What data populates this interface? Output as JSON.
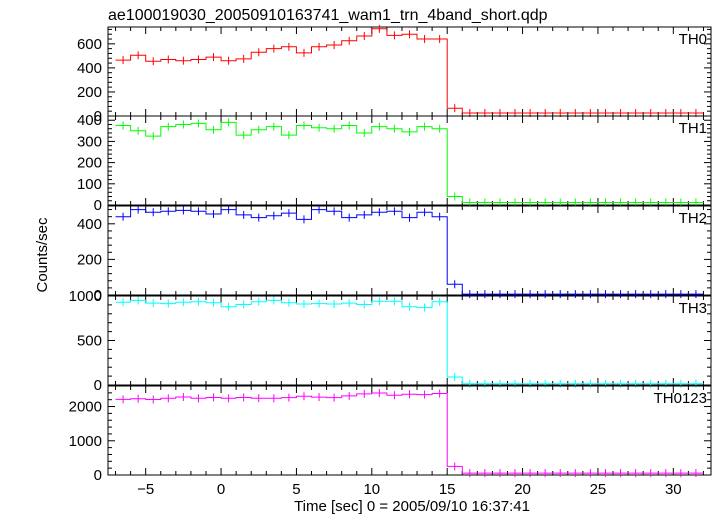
{
  "chart_data": {
    "type": "line",
    "title": "ae100019030_20050910163741_wam1_trn_4band_short.qdp",
    "xlabel": "Time [sec] 0 = 2005/09/10 16:37:41",
    "ylabel": "Counts/sec",
    "xlim": [
      -7.5,
      32.5
    ],
    "xticks": [
      -5,
      0,
      5,
      10,
      15,
      20,
      25,
      30
    ],
    "bin_edges": [
      -7,
      -6,
      -5,
      -4,
      -3,
      -2,
      -1,
      0,
      1,
      2,
      3,
      4,
      5,
      6,
      7,
      8,
      9,
      10,
      11,
      12,
      13,
      14,
      15,
      16,
      17,
      18,
      19,
      20,
      21,
      22,
      23,
      24,
      25,
      26,
      27,
      28,
      29,
      30,
      31,
      32
    ],
    "series": [
      {
        "name": "TH0",
        "color": "#ff0000",
        "ylim": [
          0,
          740
        ],
        "yticks": [
          0,
          200,
          400,
          600
        ],
        "values": [
          465,
          505,
          455,
          470,
          460,
          470,
          490,
          460,
          475,
          530,
          560,
          575,
          525,
          575,
          590,
          625,
          665,
          725,
          670,
          680,
          640,
          640,
          65,
          25,
          25,
          25,
          25,
          25,
          25,
          25,
          25,
          25,
          25,
          25,
          25,
          25,
          25,
          25,
          25
        ]
      },
      {
        "name": "TH1",
        "color": "#00ff00",
        "ylim": [
          0,
          420
        ],
        "yticks": [
          0,
          100,
          200,
          300,
          400
        ],
        "values": [
          375,
          350,
          325,
          370,
          380,
          385,
          355,
          390,
          330,
          355,
          370,
          330,
          375,
          365,
          360,
          375,
          340,
          370,
          360,
          345,
          370,
          360,
          40,
          12,
          12,
          12,
          12,
          12,
          12,
          12,
          12,
          12,
          12,
          12,
          12,
          12,
          12,
          12,
          12
        ]
      },
      {
        "name": "TH2",
        "color": "#0000ff",
        "ylim": [
          0,
          500
        ],
        "yticks": [
          0,
          200,
          400
        ],
        "values": [
          440,
          480,
          465,
          470,
          475,
          470,
          455,
          480,
          450,
          435,
          445,
          460,
          425,
          480,
          470,
          435,
          450,
          465,
          470,
          435,
          465,
          440,
          60,
          5,
          5,
          5,
          5,
          5,
          5,
          5,
          5,
          5,
          5,
          5,
          5,
          5,
          5,
          5,
          5
        ]
      },
      {
        "name": "TH3",
        "color": "#00ffff",
        "ylim": [
          0,
          1000
        ],
        "yticks": [
          0,
          500,
          1000
        ],
        "values": [
          930,
          950,
          920,
          915,
          930,
          935,
          925,
          880,
          905,
          935,
          950,
          925,
          910,
          915,
          910,
          920,
          905,
          940,
          940,
          880,
          870,
          935,
          90,
          15,
          15,
          15,
          15,
          15,
          15,
          15,
          15,
          15,
          15,
          15,
          15,
          15,
          15,
          15,
          15
        ]
      },
      {
        "name": "TH0123",
        "color": "#ff00ff",
        "ylim": [
          0,
          2600
        ],
        "yticks": [
          0,
          1000,
          2000
        ],
        "values": [
          2210,
          2230,
          2205,
          2240,
          2280,
          2240,
          2265,
          2240,
          2265,
          2245,
          2240,
          2260,
          2300,
          2275,
          2260,
          2310,
          2370,
          2395,
          2330,
          2360,
          2350,
          2380,
          250,
          55,
          55,
          55,
          55,
          55,
          55,
          55,
          55,
          55,
          55,
          55,
          55,
          55,
          55,
          55,
          55
        ]
      }
    ]
  }
}
